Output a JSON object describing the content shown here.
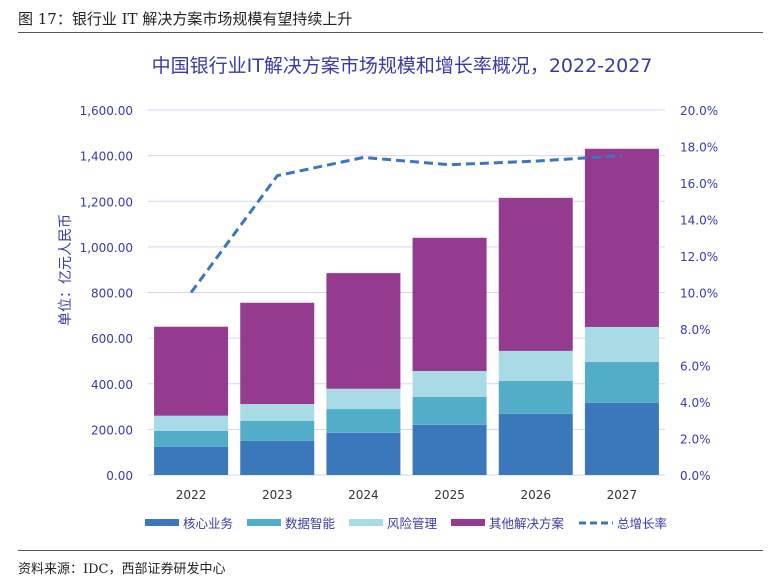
{
  "figure_title": "图 17：银行业 IT 解决方案市场规模有望持续上升",
  "source": "资料来源：IDC，西部证券研发中心",
  "chart_data": {
    "type": "bar",
    "stacked": true,
    "title": "中国银行业IT解决方案市场规模和增长率概况，2022-2027",
    "ylabel": "单位：亿元人民币",
    "categories": [
      "2022",
      "2023",
      "2024",
      "2025",
      "2026",
      "2027"
    ],
    "ylim": [
      0,
      1600
    ],
    "y2lim": [
      0,
      20
    ],
    "yticks": [
      "0.00",
      "200.00",
      "400.00",
      "600.00",
      "800.00",
      "1,000.00",
      "1,200.00",
      "1,400.00",
      "1,600.00"
    ],
    "y2ticks": [
      "0.0%",
      "2.0%",
      "4.0%",
      "6.0%",
      "8.0%",
      "10.0%",
      "12.0%",
      "14.0%",
      "16.0%",
      "18.0%",
      "20.0%"
    ],
    "grid": true,
    "legend": "bottom",
    "series": [
      {
        "name": "核心业务",
        "color": "#3b78bb",
        "values": [
          123,
          150,
          185,
          220,
          268,
          316
        ]
      },
      {
        "name": "数据智能",
        "color": "#52aec8",
        "values": [
          70,
          87,
          104,
          122,
          144,
          180
        ]
      },
      {
        "name": "风险管理",
        "color": "#a8dbe6",
        "values": [
          67,
          74,
          89,
          114,
          132,
          153
        ]
      },
      {
        "name": "其他解决方案",
        "color": "#943a8f",
        "values": [
          390,
          444,
          507,
          584,
          671,
          781
        ]
      }
    ],
    "line": {
      "name": "总增长率",
      "color": "#3b78bb",
      "values": [
        10.0,
        16.4,
        17.4,
        17.0,
        17.2,
        17.5
      ]
    }
  }
}
